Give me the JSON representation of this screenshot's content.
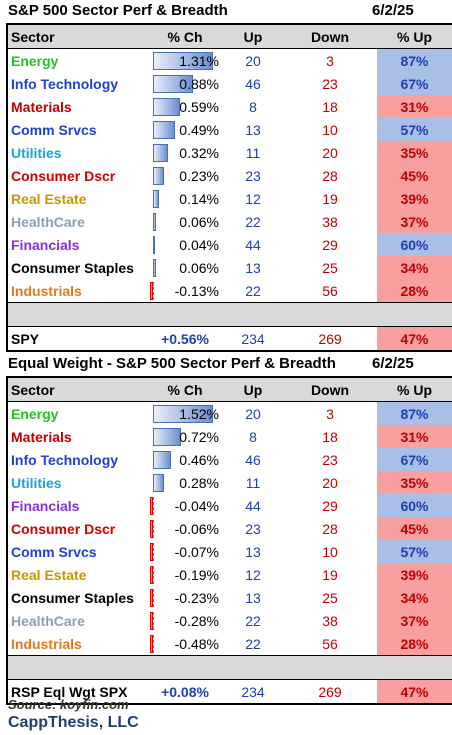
{
  "panels": [
    {
      "title": "S&P 500 Sector Perf & Breadth",
      "date": "6/2/25",
      "headers": {
        "sector": "Sector",
        "pct_ch": "% Ch",
        "up": "Up",
        "down": "Down",
        "pct_up": "% Up"
      },
      "rows": [
        {
          "sector": "Energy",
          "color": "#22c322",
          "pct_ch": "1.31%",
          "pct_value": 1.31,
          "up": "20",
          "down": "3",
          "pct_up": "87%",
          "pct_up_tone": "blue"
        },
        {
          "sector": "Info Technology",
          "color": "#1f3fd6",
          "pct_ch": "0.88%",
          "pct_value": 0.88,
          "up": "46",
          "down": "23",
          "pct_up": "67%",
          "pct_up_tone": "blue"
        },
        {
          "sector": "Materials",
          "color": "#c00000",
          "pct_ch": "0.59%",
          "pct_value": 0.59,
          "up": "8",
          "down": "18",
          "pct_up": "31%",
          "pct_up_tone": "red"
        },
        {
          "sector": "Comm Srvcs",
          "color": "#1f3fd6",
          "pct_ch": "0.49%",
          "pct_value": 0.49,
          "up": "13",
          "down": "10",
          "pct_up": "57%",
          "pct_up_tone": "blue"
        },
        {
          "sector": "Utilities",
          "color": "#1aa3e0",
          "pct_ch": "0.32%",
          "pct_value": 0.32,
          "up": "11",
          "down": "20",
          "pct_up": "35%",
          "pct_up_tone": "red"
        },
        {
          "sector": "Consumer Dscr",
          "color": "#d00000",
          "pct_ch": "0.23%",
          "pct_value": 0.23,
          "up": "23",
          "down": "28",
          "pct_up": "45%",
          "pct_up_tone": "red"
        },
        {
          "sector": "Real Estate",
          "color": "#c99700",
          "pct_ch": "0.14%",
          "pct_value": 0.14,
          "up": "12",
          "down": "19",
          "pct_up": "39%",
          "pct_up_tone": "red"
        },
        {
          "sector": "HealthCare",
          "color": "#8a9fb5",
          "pct_ch": "0.06%",
          "pct_value": 0.06,
          "up": "22",
          "down": "38",
          "pct_up": "37%",
          "pct_up_tone": "red"
        },
        {
          "sector": "Financials",
          "color": "#8a2be2",
          "pct_ch": "0.04%",
          "pct_value": 0.04,
          "up": "44",
          "down": "29",
          "pct_up": "60%",
          "pct_up_tone": "blue"
        },
        {
          "sector": "Consumer Staples",
          "color": "#000000",
          "pct_ch": "0.06%",
          "pct_value": 0.06,
          "up": "13",
          "down": "25",
          "pct_up": "34%",
          "pct_up_tone": "red"
        },
        {
          "sector": "Industrials",
          "color": "#e07a1f",
          "pct_ch": "-0.13%",
          "pct_value": -0.13,
          "up": "22",
          "down": "56",
          "pct_up": "28%",
          "pct_up_tone": "red"
        }
      ],
      "total": {
        "label": "SPY",
        "pct_ch": "+0.56%",
        "up": "234",
        "down": "269",
        "pct_up": "47%"
      }
    },
    {
      "title": "Equal Weight - S&P 500 Sector Perf & Breadth",
      "date": "6/2/25",
      "headers": {
        "sector": "Sector",
        "pct_ch": "% Ch",
        "up": "Up",
        "down": "Down",
        "pct_up": "% Up"
      },
      "rows": [
        {
          "sector": "Energy",
          "color": "#22c322",
          "pct_ch": "1.52%",
          "pct_value": 1.52,
          "up": "20",
          "down": "3",
          "pct_up": "87%",
          "pct_up_tone": "blue"
        },
        {
          "sector": "Materials",
          "color": "#c00000",
          "pct_ch": "0.72%",
          "pct_value": 0.72,
          "up": "8",
          "down": "18",
          "pct_up": "31%",
          "pct_up_tone": "red"
        },
        {
          "sector": "Info Technology",
          "color": "#1f3fd6",
          "pct_ch": "0.46%",
          "pct_value": 0.46,
          "up": "46",
          "down": "23",
          "pct_up": "67%",
          "pct_up_tone": "blue"
        },
        {
          "sector": "Utilities",
          "color": "#1aa3e0",
          "pct_ch": "0.28%",
          "pct_value": 0.28,
          "up": "11",
          "down": "20",
          "pct_up": "35%",
          "pct_up_tone": "red"
        },
        {
          "sector": "Financials",
          "color": "#8a2be2",
          "pct_ch": "-0.04%",
          "pct_value": -0.04,
          "up": "44",
          "down": "29",
          "pct_up": "60%",
          "pct_up_tone": "blue"
        },
        {
          "sector": "Consumer Dscr",
          "color": "#d00000",
          "pct_ch": "-0.06%",
          "pct_value": -0.06,
          "up": "23",
          "down": "28",
          "pct_up": "45%",
          "pct_up_tone": "red"
        },
        {
          "sector": "Comm Srvcs",
          "color": "#1f3fd6",
          "pct_ch": "-0.07%",
          "pct_value": -0.07,
          "up": "13",
          "down": "10",
          "pct_up": "57%",
          "pct_up_tone": "blue"
        },
        {
          "sector": "Real Estate",
          "color": "#c99700",
          "pct_ch": "-0.19%",
          "pct_value": -0.19,
          "up": "12",
          "down": "19",
          "pct_up": "39%",
          "pct_up_tone": "red"
        },
        {
          "sector": "Consumer Staples",
          "color": "#000000",
          "pct_ch": "-0.23%",
          "pct_value": -0.23,
          "up": "13",
          "down": "25",
          "pct_up": "34%",
          "pct_up_tone": "red"
        },
        {
          "sector": "HealthCare",
          "color": "#8a9fb5",
          "pct_ch": "-0.28%",
          "pct_value": -0.28,
          "up": "22",
          "down": "38",
          "pct_up": "37%",
          "pct_up_tone": "red"
        },
        {
          "sector": "Industrials",
          "color": "#e07a1f",
          "pct_ch": "-0.48%",
          "pct_value": -0.48,
          "up": "22",
          "down": "56",
          "pct_up": "28%",
          "pct_up_tone": "red"
        }
      ],
      "total": {
        "label": "RSP Eql Wgt SPX",
        "pct_ch": "+0.08%",
        "up": "234",
        "down": "269",
        "pct_up": "47%"
      }
    }
  ],
  "footer": {
    "source": "Source: koyfin.com",
    "brand": "CappThesis, LLC"
  },
  "colors": {
    "pct_up_blue": "#a9bfe6",
    "pct_up_red": "#f8a0a0",
    "bar_pos": "#6b8fd0",
    "bar_neg": "#f24b4b"
  }
}
